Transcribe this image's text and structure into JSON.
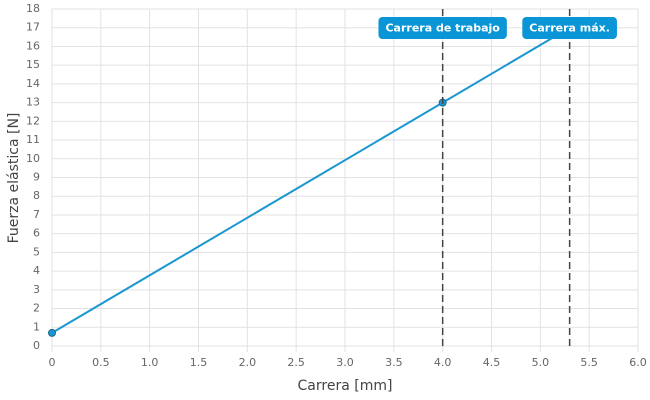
{
  "chart_data": {
    "type": "line",
    "x_label": "Carrera [mm]",
    "y_label": "Fuerza elástica [N]",
    "x": [
      0,
      4,
      5.3
    ],
    "series": [
      {
        "color": "#1a96d0",
        "values": [
          0.7,
          13,
          17
        ]
      }
    ],
    "xlim": [
      0,
      6
    ],
    "ylim": [
      0,
      18
    ],
    "xticks": [
      0,
      0.5,
      {
        "value": 1,
        "label": "1.0"
      },
      1.5,
      {
        "value": 2,
        "label": "2.0"
      },
      2.5,
      {
        "value": 3,
        "label": "3.0"
      },
      3.5,
      {
        "value": 4,
        "label": "4.0"
      },
      4.5,
      {
        "value": 5,
        "label": "5.0"
      },
      5.5,
      {
        "value": 6,
        "label": "6.0"
      }
    ],
    "yticks": [
      0,
      1,
      2,
      3,
      4,
      5,
      6,
      7,
      8,
      9,
      10,
      11,
      12,
      13,
      14,
      15,
      16,
      17,
      18
    ],
    "grid": true,
    "annotations": [
      {
        "x": 4,
        "label": "Carrera de trabajo",
        "color": "#0a96d6"
      },
      {
        "x": 5.3,
        "label": "Carrera máx.",
        "color": "#0a96d6"
      }
    ]
  }
}
